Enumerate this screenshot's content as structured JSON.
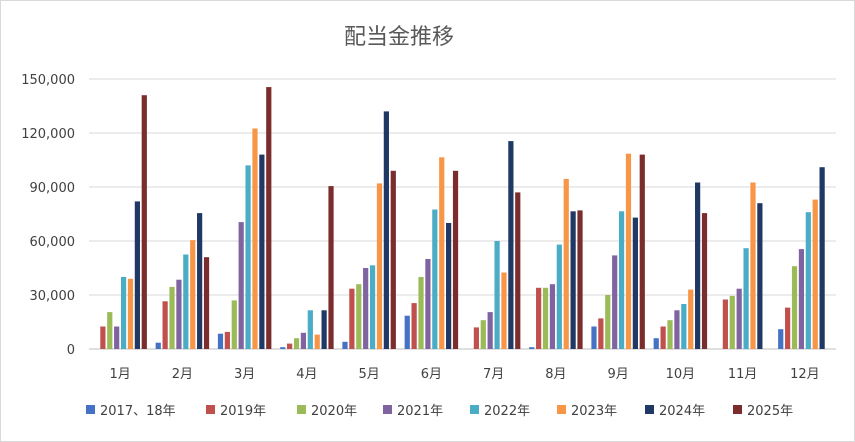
{
  "chart_data": {
    "type": "bar",
    "title": "配当金推移",
    "xlabel": "",
    "ylabel": "",
    "ylim": [
      0,
      150000
    ],
    "yticks": [
      "0",
      "30,000",
      "60,000",
      "90,000",
      "120,000",
      "150,000"
    ],
    "grid": true,
    "legend_position": "bottom",
    "categories": [
      "1月",
      "2月",
      "3月",
      "4月",
      "5月",
      "6月",
      "7月",
      "8月",
      "9月",
      "10月",
      "11月",
      "12月"
    ],
    "series": [
      {
        "name": "2017、18年",
        "color": "#4472c4",
        "values": [
          0,
          3500,
          8500,
          1000,
          4000,
          18500,
          0,
          1000,
          12500,
          6000,
          0,
          11000
        ]
      },
      {
        "name": "2019年",
        "color": "#c0504d",
        "values": [
          12500,
          26500,
          9500,
          3000,
          33500,
          25500,
          12000,
          34000,
          17000,
          12500,
          27500,
          23000
        ]
      },
      {
        "name": "2020年",
        "color": "#9bbb59",
        "values": [
          20500,
          34500,
          27000,
          6000,
          36000,
          40000,
          16000,
          34000,
          30000,
          16000,
          29500,
          46000
        ]
      },
      {
        "name": "2021年",
        "color": "#8064a2",
        "values": [
          12500,
          38500,
          70500,
          9000,
          45000,
          50000,
          20500,
          36000,
          52000,
          21500,
          33500,
          55500
        ]
      },
      {
        "name": "2022年",
        "color": "#4bacc6",
        "values": [
          40000,
          52500,
          102000,
          21500,
          46500,
          77500,
          60000,
          58000,
          76500,
          25000,
          56000,
          76000
        ]
      },
      {
        "name": "2023年",
        "color": "#f79646",
        "values": [
          39000,
          60500,
          122500,
          8000,
          92000,
          106500,
          42500,
          94500,
          108500,
          33000,
          92500,
          83000
        ]
      },
      {
        "name": "2024年",
        "color": "#1f3864",
        "values": [
          82000,
          75500,
          108000,
          21500,
          132000,
          70000,
          115500,
          76500,
          73000,
          92500,
          81000,
          101000
        ]
      },
      {
        "name": "2025年",
        "color": "#7b2c2c",
        "values": [
          141000,
          51000,
          145500,
          90500,
          99000,
          99000,
          87000,
          77000,
          108000,
          75500,
          0,
          0
        ]
      }
    ]
  }
}
